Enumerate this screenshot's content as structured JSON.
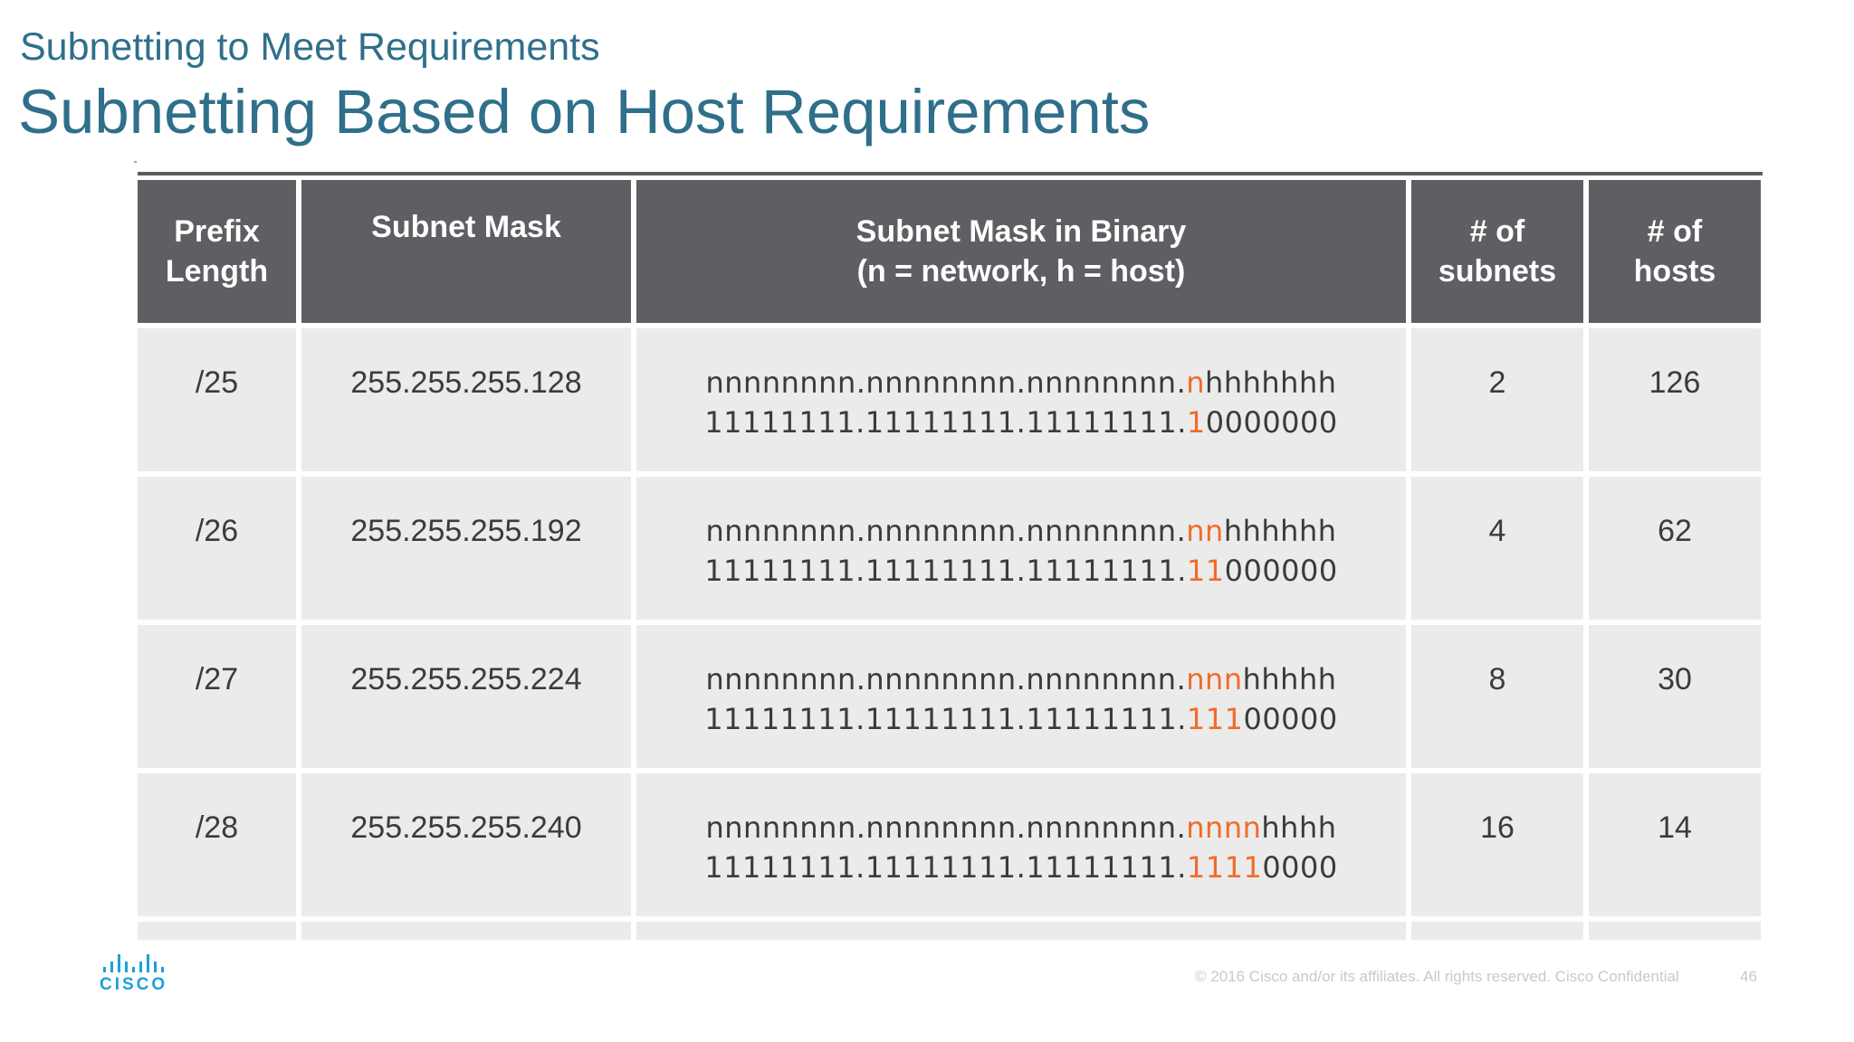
{
  "header": {
    "subtitle": "Subnetting to Meet Requirements",
    "title": "Subnetting Based on Host Requirements"
  },
  "table": {
    "columns": [
      {
        "line1": "Prefix",
        "line2": "Length"
      },
      {
        "line1": "Subnet Mask",
        "line2": ""
      },
      {
        "line1": "Subnet Mask in Binary",
        "line2": "(n = network, h = host)"
      },
      {
        "line1": "# of",
        "line2": "subnets"
      },
      {
        "line1": "# of",
        "line2": "hosts"
      }
    ],
    "rows": [
      {
        "prefix": "/25",
        "mask": "255.255.255.128",
        "n_pre": "nnnnnnnn.nnnnnnnn.nnnnnnnn.",
        "n_hl": "n",
        "n_post": "hhhhhhh",
        "b_pre": "11111111.11111111.11111111.",
        "b_hl": "1",
        "b_post": "0000000",
        "subnets": "2",
        "hosts": "126"
      },
      {
        "prefix": "/26",
        "mask": "255.255.255.192",
        "n_pre": "nnnnnnnn.nnnnnnnn.nnnnnnnn.",
        "n_hl": "nn",
        "n_post": "hhhhhh",
        "b_pre": "11111111.11111111.11111111.",
        "b_hl": "11",
        "b_post": "000000",
        "subnets": "4",
        "hosts": "62"
      },
      {
        "prefix": "/27",
        "mask": "255.255.255.224",
        "n_pre": "nnnnnnnn.nnnnnnnn.nnnnnnnn.",
        "n_hl": "nnn",
        "n_post": "hhhhh",
        "b_pre": "11111111.11111111.11111111.",
        "b_hl": "111",
        "b_post": "00000",
        "subnets": "8",
        "hosts": "30"
      },
      {
        "prefix": "/28",
        "mask": "255.255.255.240",
        "n_pre": "nnnnnnnn.nnnnnnnn.nnnnnnnn.",
        "n_hl": "nnnn",
        "n_post": "hhhh",
        "b_pre": "11111111.11111111.11111111.",
        "b_hl": "1111",
        "b_post": "0000",
        "subnets": "16",
        "hosts": "14"
      }
    ]
  },
  "footer": {
    "copyright": "© 2016  Cisco and/or its affiliates. All rights reserved.   Cisco Confidential",
    "page": "46"
  },
  "logo": {
    "text": "CISCO"
  },
  "colors": {
    "title": "#2f6f8a",
    "header_bg": "#5f5e63",
    "row_bg": "#ebebeb",
    "highlight": "#f26b2a",
    "logo": "#1ba0d7"
  }
}
